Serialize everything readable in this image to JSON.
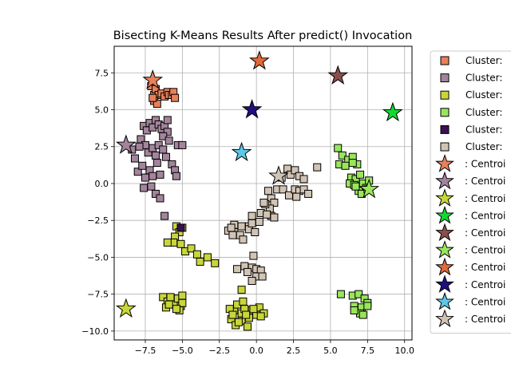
{
  "chart_data": {
    "type": "scatter",
    "title": "Bisecting K-Means Results After predict() Invocation",
    "xlabel": "",
    "ylabel": "",
    "xlim": [
      -9.6,
      10.5
    ],
    "ylim": [
      -10.6,
      9.3
    ],
    "xticks": [
      -7.5,
      -5.0,
      -2.5,
      0.0,
      2.5,
      5.0,
      7.5,
      10.0
    ],
    "xtick_labels": [
      "−7.5",
      "−5.0",
      "−2.5",
      "0.0",
      "2.5",
      "5.0",
      "7.5",
      "10.0"
    ],
    "yticks": [
      -10.0,
      -7.5,
      -5.0,
      -2.5,
      0.0,
      2.5,
      5.0,
      7.5
    ],
    "ytick_labels": [
      "−10.0",
      "−7.5",
      "−5.0",
      "−2.5",
      "0.0",
      "2.5",
      "5.0",
      "7.5"
    ],
    "grid": true,
    "legend_position": "outside right, clipped",
    "series": [
      {
        "name": "Cluster:",
        "marker": "square",
        "color": "#e8805a",
        "points": [
          [
            -7.1,
            6.6
          ],
          [
            -6.9,
            6.0
          ],
          [
            -6.8,
            6.4
          ],
          [
            -6.6,
            6.0
          ],
          [
            -6.4,
            6.1
          ],
          [
            -6.2,
            5.9
          ],
          [
            -6.0,
            6.2
          ],
          [
            -5.9,
            6.0
          ],
          [
            -5.7,
            6.0
          ],
          [
            -5.6,
            6.2
          ],
          [
            -5.5,
            5.8
          ],
          [
            -6.9,
            5.6
          ],
          [
            -6.7,
            5.4
          ],
          [
            -7.0,
            5.8
          ]
        ]
      },
      {
        "name": "Cluster:",
        "marker": "square",
        "color": "#a3849c",
        "points": [
          [
            -7.6,
            3.9
          ],
          [
            -7.4,
            3.6
          ],
          [
            -7.2,
            4.1
          ],
          [
            -7.0,
            3.8
          ],
          [
            -6.8,
            4.3
          ],
          [
            -6.6,
            4.0
          ],
          [
            -6.4,
            3.7
          ],
          [
            -6.2,
            3.9
          ],
          [
            -6.0,
            3.5
          ],
          [
            -7.8,
            3.0
          ],
          [
            -7.5,
            2.6
          ],
          [
            -7.3,
            2.1
          ],
          [
            -7.0,
            2.4
          ],
          [
            -6.8,
            1.9
          ],
          [
            -6.6,
            2.6
          ],
          [
            -6.3,
            2.3
          ],
          [
            -6.1,
            1.8
          ],
          [
            -8.4,
            2.3
          ],
          [
            -8.2,
            1.7
          ],
          [
            -8.0,
            0.8
          ],
          [
            -7.7,
            1.2
          ],
          [
            -7.5,
            0.4
          ],
          [
            -7.2,
            0.9
          ],
          [
            -7.0,
            0.5
          ],
          [
            -6.7,
            1.4
          ],
          [
            -6.5,
            0.6
          ],
          [
            -7.6,
            -0.3
          ],
          [
            -7.1,
            -0.2
          ],
          [
            -6.8,
            -0.7
          ],
          [
            -6.2,
            -2.2
          ],
          [
            -6.5,
            -1.0
          ],
          [
            -5.7,
            1.3
          ],
          [
            -5.5,
            0.9
          ],
          [
            -5.4,
            0.5
          ],
          [
            -5.3,
            2.6
          ],
          [
            -5.0,
            2.6
          ],
          [
            -6.3,
            3.2
          ],
          [
            -5.9,
            2.9
          ],
          [
            -7.9,
            2.5
          ],
          [
            -6.0,
            4.3
          ]
        ]
      },
      {
        "name": "Cluster:",
        "marker": "square",
        "color": "#c8d63a",
        "points": [
          [
            -5.4,
            -2.9
          ],
          [
            -5.2,
            -3.3
          ],
          [
            -5.0,
            -3.0
          ],
          [
            -5.5,
            -3.6
          ],
          [
            -5.1,
            -4.1
          ],
          [
            -4.8,
            -4.6
          ],
          [
            -4.4,
            -4.4
          ],
          [
            -4.0,
            -4.8
          ],
          [
            -3.8,
            -5.3
          ],
          [
            -3.3,
            -5.0
          ],
          [
            -2.8,
            -5.4
          ],
          [
            -5.6,
            -4.0
          ],
          [
            -6.0,
            -4.0
          ],
          [
            -6.3,
            -7.7
          ],
          [
            -6.0,
            -8.0
          ],
          [
            -5.7,
            -7.8
          ],
          [
            -5.5,
            -8.2
          ],
          [
            -5.3,
            -7.8
          ],
          [
            -5.1,
            -8.3
          ],
          [
            -6.1,
            -8.4
          ],
          [
            -5.9,
            -8.2
          ],
          [
            -5.2,
            -8.6
          ],
          [
            -5.0,
            -8.1
          ],
          [
            -5.4,
            -8.5
          ],
          [
            -5.8,
            -7.7
          ],
          [
            -5.0,
            -7.6
          ],
          [
            -1.5,
            -8.6
          ],
          [
            -1.3,
            -8.2
          ],
          [
            -1.0,
            -8.8
          ],
          [
            -0.8,
            -8.5
          ],
          [
            -0.5,
            -9.1
          ],
          [
            -0.3,
            -8.6
          ],
          [
            0.0,
            -8.9
          ],
          [
            0.2,
            -8.4
          ],
          [
            0.5,
            -8.8
          ],
          [
            -1.7,
            -9.2
          ],
          [
            -1.4,
            -9.6
          ],
          [
            -1.0,
            -9.3
          ],
          [
            -0.6,
            -9.7
          ],
          [
            -1.2,
            -9.4
          ],
          [
            -1.8,
            -8.5
          ],
          [
            -0.9,
            -8.0
          ],
          [
            -1.0,
            -7.2
          ],
          [
            -0.7,
            -8.9
          ],
          [
            -0.2,
            -8.5
          ],
          [
            0.3,
            -9.0
          ],
          [
            -1.6,
            -8.9
          ]
        ]
      },
      {
        "name": "Cluster:",
        "marker": "square",
        "color": "#98e65a",
        "points": [
          [
            5.5,
            2.4
          ],
          [
            5.8,
            1.9
          ],
          [
            6.2,
            1.6
          ],
          [
            6.5,
            1.8
          ],
          [
            6.8,
            1.3
          ],
          [
            5.6,
            1.3
          ],
          [
            6.0,
            1.2
          ],
          [
            6.4,
            0.4
          ],
          [
            6.7,
            0.3
          ],
          [
            7.0,
            0.6
          ],
          [
            7.2,
            0.0
          ],
          [
            7.4,
            -0.3
          ],
          [
            7.6,
            0.2
          ],
          [
            6.3,
            0.0
          ],
          [
            6.6,
            -0.1
          ],
          [
            6.9,
            -0.5
          ],
          [
            7.1,
            -0.7
          ],
          [
            7.5,
            -0.4
          ],
          [
            6.7,
            -0.2
          ],
          [
            6.5,
            1.4
          ],
          [
            5.7,
            -7.5
          ],
          [
            6.5,
            -7.6
          ],
          [
            6.9,
            -7.5
          ],
          [
            7.3,
            -7.8
          ],
          [
            7.5,
            -8.1
          ],
          [
            6.6,
            -8.3
          ],
          [
            7.1,
            -8.4
          ],
          [
            7.5,
            -8.3
          ],
          [
            7.0,
            -8.8
          ],
          [
            6.6,
            -8.6
          ],
          [
            7.2,
            -8.9
          ]
        ]
      },
      {
        "name": "Cluster:",
        "marker": "square",
        "color": "#3b0f52",
        "points": [
          [
            -5.1,
            -3.0
          ]
        ]
      },
      {
        "name": "Cluster:",
        "marker": "square",
        "color": "#d2c4b4",
        "points": [
          [
            1.7,
            0.4
          ],
          [
            2.1,
            1.0
          ],
          [
            2.3,
            0.6
          ],
          [
            2.6,
            0.9
          ],
          [
            2.9,
            0.5
          ],
          [
            3.2,
            0.3
          ],
          [
            4.1,
            1.1
          ],
          [
            1.4,
            -0.4
          ],
          [
            1.8,
            -0.4
          ],
          [
            2.2,
            -0.8
          ],
          [
            2.6,
            -0.4
          ],
          [
            2.9,
            -0.5
          ],
          [
            3.2,
            -0.4
          ],
          [
            3.5,
            -0.7
          ],
          [
            2.7,
            -0.9
          ],
          [
            1.0,
            -1.0
          ],
          [
            1.2,
            -1.3
          ],
          [
            0.9,
            -1.7
          ],
          [
            0.6,
            -1.4
          ],
          [
            0.3,
            -2.0
          ],
          [
            1.0,
            -2.2
          ],
          [
            1.2,
            -2.3
          ],
          [
            0.7,
            -2.1
          ],
          [
            0.5,
            -1.3
          ],
          [
            -0.3,
            -2.2
          ],
          [
            -0.5,
            -2.9
          ],
          [
            -1.0,
            -2.9
          ],
          [
            -1.5,
            -2.8
          ],
          [
            -1.9,
            -3.2
          ],
          [
            -1.5,
            -3.3
          ],
          [
            -1.1,
            -3.5
          ],
          [
            -0.9,
            -3.8
          ],
          [
            -0.5,
            -3.1
          ],
          [
            -0.3,
            -2.7
          ],
          [
            -0.1,
            -3.3
          ],
          [
            -1.3,
            -5.8
          ],
          [
            -0.8,
            -5.6
          ],
          [
            -0.3,
            -5.7
          ],
          [
            0.0,
            -5.8
          ],
          [
            0.3,
            -5.9
          ],
          [
            -0.6,
            -6.0
          ],
          [
            0.0,
            -6.3
          ],
          [
            0.4,
            -6.3
          ],
          [
            -0.3,
            -6.6
          ],
          [
            -0.2,
            -4.9
          ],
          [
            -1.6,
            -3.5
          ],
          [
            -1.7,
            -3.0
          ],
          [
            0.2,
            -2.6
          ],
          [
            0.8,
            -0.5
          ]
        ]
      },
      {
        "name": ": Centroi",
        "marker": "star",
        "color": "#e8805a",
        "points": [
          [
            -7.0,
            7.0
          ]
        ]
      },
      {
        "name": ": Centroi",
        "marker": "star",
        "color": "#a3849c",
        "points": [
          [
            -8.8,
            2.6
          ]
        ]
      },
      {
        "name": ": Centroi",
        "marker": "star",
        "color": "#c8d63a",
        "points": [
          [
            -8.8,
            -8.5
          ]
        ]
      },
      {
        "name": ": Centroi",
        "marker": "star",
        "color": "#11d932",
        "points": [
          [
            9.2,
            4.8
          ]
        ]
      },
      {
        "name": ": Centroi",
        "marker": "star",
        "color": "#8a4e4e",
        "points": [
          [
            5.5,
            7.3
          ]
        ]
      },
      {
        "name": ": Centroi",
        "marker": "star",
        "color": "#98e65a",
        "points": [
          [
            7.6,
            -0.4
          ]
        ]
      },
      {
        "name": ": Centroi",
        "marker": "star",
        "color": "#e06a3a",
        "points": [
          [
            0.2,
            8.3
          ]
        ]
      },
      {
        "name": ": Centroi",
        "marker": "star",
        "color": "#1f0f80",
        "points": [
          [
            -0.3,
            5.0
          ]
        ]
      },
      {
        "name": ": Centroi",
        "marker": "star",
        "color": "#5bc8e8",
        "points": [
          [
            -1.0,
            2.1
          ]
        ]
      },
      {
        "name": ": Centroi",
        "marker": "star",
        "color": "#d2c4b4",
        "points": [
          [
            1.5,
            0.5
          ]
        ]
      }
    ]
  }
}
